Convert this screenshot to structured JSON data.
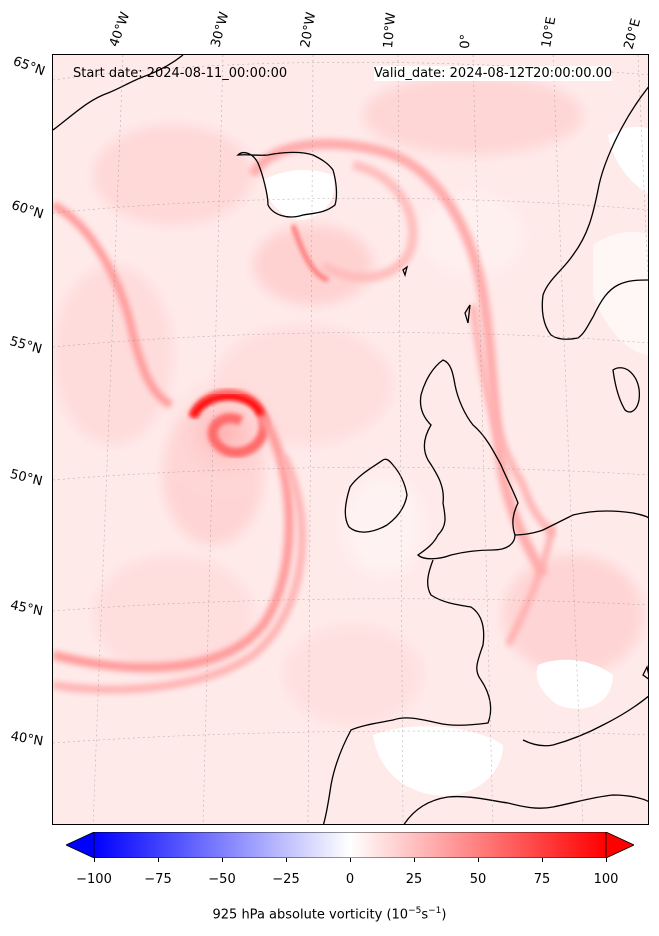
{
  "header": {
    "start_date": "Start date: 2024-08-11_00:00:00",
    "valid_date": "Valid_date: 2024-08-12T20:00:00.00"
  },
  "lon_labels": [
    "40°W",
    "30°W",
    "20°W",
    "10°W",
    "0°",
    "10°E",
    "20°E"
  ],
  "lat_labels": [
    "65°N",
    "60°N",
    "55°N",
    "50°N",
    "45°N",
    "40°N"
  ],
  "colorbar": {
    "ticks": [
      "−100",
      "−75",
      "−50",
      "−25",
      "0",
      "25",
      "50",
      "75",
      "100"
    ],
    "label": "925 hPa absolute vorticity (10",
    "label_sup1": "−5",
    "label_mid": "s",
    "label_sup2": "−1",
    "label_end": ")",
    "range": [
      -100,
      100
    ],
    "colormap": "bwr",
    "low_color": "#0000ff",
    "mid_color": "#ffffff",
    "high_color": "#ff0000"
  }
}
